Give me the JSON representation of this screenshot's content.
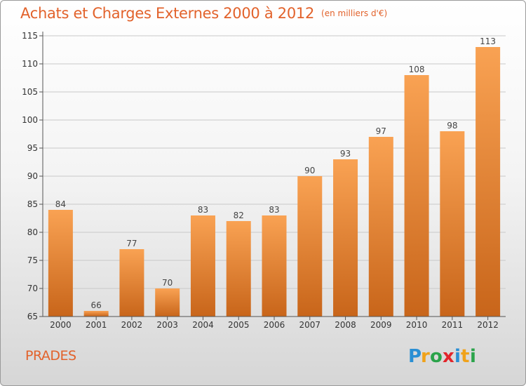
{
  "title": "Achats et Charges Externes 2000 à 2012",
  "subtitle": "(en milliers d'€)",
  "commune": "PRADES",
  "logo_text": "Proxiti",
  "colors": {
    "accent": "#e2622b",
    "bar_top": "#f9a253",
    "bar_bottom": "#c8651a",
    "grid": "#c9c9c9",
    "axis": "#555555"
  },
  "chart_data": {
    "type": "bar",
    "categories": [
      "2000",
      "2001",
      "2002",
      "2003",
      "2004",
      "2005",
      "2006",
      "2007",
      "2008",
      "2009",
      "2010",
      "2011",
      "2012"
    ],
    "values": [
      84,
      66,
      77,
      70,
      83,
      82,
      83,
      90,
      93,
      97,
      108,
      98,
      113
    ],
    "yticks": [
      65,
      70,
      75,
      80,
      85,
      90,
      95,
      100,
      105,
      110,
      115
    ],
    "ylim": [
      65,
      115
    ],
    "grid": true,
    "title": "Achats et Charges Externes 2000 à 2012",
    "xlabel": "",
    "ylabel": ""
  }
}
